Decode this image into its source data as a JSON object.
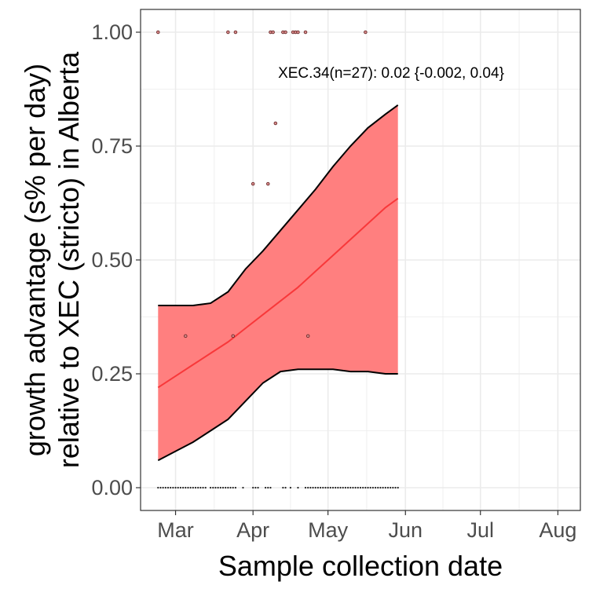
{
  "chart_data": {
    "type": "line",
    "title": "",
    "xlabel": "Sample collection date",
    "ylabel_line1": "growth advantage (s% per day)",
    "ylabel_line2": "relative to XEC (stricto) in Alberta",
    "x_tick_labels": [
      "Mar",
      "Apr",
      "May",
      "Jun",
      "Jul",
      "Aug"
    ],
    "x_tick_dates": [
      "2025-03-01",
      "2025-04-01",
      "2025-05-01",
      "2025-06-01",
      "2025-07-01",
      "2025-08-01"
    ],
    "y_tick_labels": [
      "0.00",
      "0.25",
      "0.50",
      "0.75",
      "1.00"
    ],
    "y_tick_values": [
      0,
      0.25,
      0.5,
      0.75,
      1.0
    ],
    "xlim": [
      "2025-02-15",
      "2025-08-10"
    ],
    "ylim": [
      -0.05,
      1.05
    ],
    "grid": true,
    "annotation": "XEC.34(n=27): 0.02 {-0.002, 0.04}",
    "colors": {
      "ribbon": "#ff7f7f",
      "fit_line": "#f8383a",
      "ribbon_edge": "#000000",
      "grid": "#ebebeb",
      "points": "#6b2b2b"
    },
    "fit": {
      "x": [
        "2025-02-22",
        "2025-03-01",
        "2025-03-08",
        "2025-03-15",
        "2025-03-22",
        "2025-03-29",
        "2025-04-05",
        "2025-04-12",
        "2025-04-19",
        "2025-04-26",
        "2025-05-03",
        "2025-05-10",
        "2025-05-17",
        "2025-05-24",
        "2025-05-29"
      ],
      "y": [
        0.22,
        0.245,
        0.27,
        0.295,
        0.32,
        0.35,
        0.38,
        0.41,
        0.44,
        0.475,
        0.51,
        0.545,
        0.58,
        0.615,
        0.635
      ]
    },
    "ribbon": {
      "x": [
        "2025-02-22",
        "2025-03-01",
        "2025-03-08",
        "2025-03-15",
        "2025-03-22",
        "2025-03-29",
        "2025-04-05",
        "2025-04-12",
        "2025-04-19",
        "2025-04-26",
        "2025-05-03",
        "2025-05-10",
        "2025-05-17",
        "2025-05-24",
        "2025-05-29"
      ],
      "lower": [
        0.06,
        0.08,
        0.1,
        0.125,
        0.15,
        0.19,
        0.23,
        0.255,
        0.26,
        0.26,
        0.26,
        0.255,
        0.255,
        0.25,
        0.25
      ],
      "upper": [
        0.4,
        0.4,
        0.4,
        0.405,
        0.43,
        0.48,
        0.52,
        0.565,
        0.61,
        0.655,
        0.705,
        0.75,
        0.79,
        0.82,
        0.84
      ]
    },
    "points": [
      {
        "x": "2025-02-22",
        "y": 1.0
      },
      {
        "x": "2025-03-22",
        "y": 1.0
      },
      {
        "x": "2025-03-25",
        "y": 1.0
      },
      {
        "x": "2025-04-08",
        "y": 1.0
      },
      {
        "x": "2025-04-09",
        "y": 1.0
      },
      {
        "x": "2025-04-13",
        "y": 1.0
      },
      {
        "x": "2025-04-14",
        "y": 1.0
      },
      {
        "x": "2025-04-17",
        "y": 1.0
      },
      {
        "x": "2025-04-18",
        "y": 1.0
      },
      {
        "x": "2025-04-19",
        "y": 1.0
      },
      {
        "x": "2025-04-22",
        "y": 1.0
      },
      {
        "x": "2025-05-16",
        "y": 1.0
      },
      {
        "x": "2025-04-10",
        "y": 0.8
      },
      {
        "x": "2025-04-01",
        "y": 0.667
      },
      {
        "x": "2025-04-07",
        "y": 0.667
      },
      {
        "x": "2025-03-05",
        "y": 0.333
      },
      {
        "x": "2025-03-24",
        "y": 0.333
      },
      {
        "x": "2025-04-23",
        "y": 0.333
      }
    ],
    "zero_points": {
      "ranges": [
        [
          "2025-02-22",
          "2025-03-13"
        ],
        [
          "2025-03-15",
          "2025-03-25"
        ],
        [
          "2025-04-23",
          "2025-05-29"
        ]
      ],
      "singles": [
        "2025-03-28",
        "2025-04-01",
        "2025-04-02",
        "2025-04-03",
        "2025-04-06",
        "2025-04-07",
        "2025-04-08",
        "2025-04-13",
        "2025-04-14",
        "2025-04-16",
        "2025-04-19",
        "2025-04-22"
      ]
    }
  }
}
